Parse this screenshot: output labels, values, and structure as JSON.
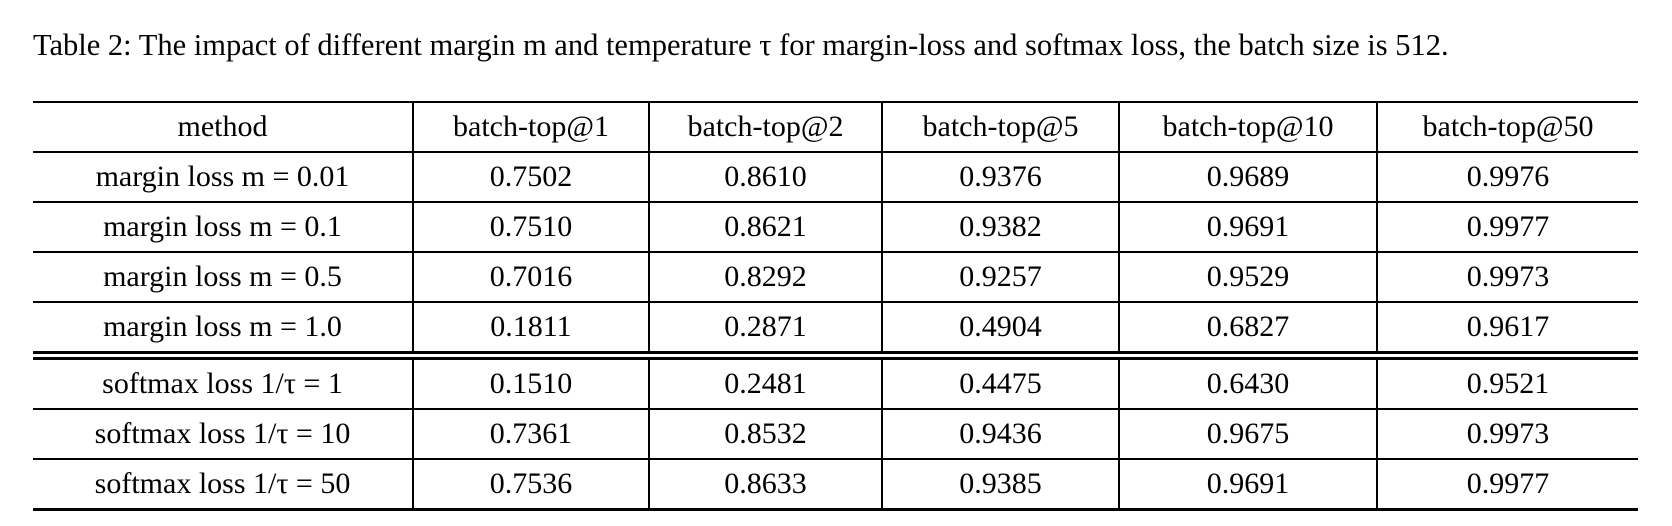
{
  "caption": "Table 2: The impact of different margin m and temperature τ for margin-loss and softmax loss, the batch size is 512.",
  "colors": {
    "text": "#000000",
    "rule": "#000000",
    "background": "#ffffff"
  },
  "table": {
    "columns": [
      "method",
      "batch-top@1",
      "batch-top@2",
      "batch-top@5",
      "batch-top@10",
      "batch-top@50"
    ],
    "groups": [
      {
        "name": "margin-loss",
        "rows": [
          {
            "method": "margin loss m = 0.01",
            "values": [
              "0.7502",
              "0.8610",
              "0.9376",
              "0.9689",
              "0.9976"
            ]
          },
          {
            "method": "margin loss m = 0.1",
            "values": [
              "0.7510",
              "0.8621",
              "0.9382",
              "0.9691",
              "0.9977"
            ]
          },
          {
            "method": "margin loss m = 0.5",
            "values": [
              "0.7016",
              "0.8292",
              "0.9257",
              "0.9529",
              "0.9973"
            ]
          },
          {
            "method": "margin loss m = 1.0",
            "values": [
              "0.1811",
              "0.2871",
              "0.4904",
              "0.6827",
              "0.9617"
            ]
          }
        ]
      },
      {
        "name": "softmax-loss",
        "rows": [
          {
            "method": "softmax loss 1/τ = 1",
            "values": [
              "0.1510",
              "0.2481",
              "0.4475",
              "0.6430",
              "0.9521"
            ]
          },
          {
            "method": "softmax loss 1/τ = 10",
            "values": [
              "0.7361",
              "0.8532",
              "0.9436",
              "0.9675",
              "0.9973"
            ]
          },
          {
            "method": "softmax loss 1/τ = 50",
            "values": [
              "0.7536",
              "0.8633",
              "0.9385",
              "0.9691",
              "0.9977"
            ]
          }
        ]
      }
    ]
  }
}
